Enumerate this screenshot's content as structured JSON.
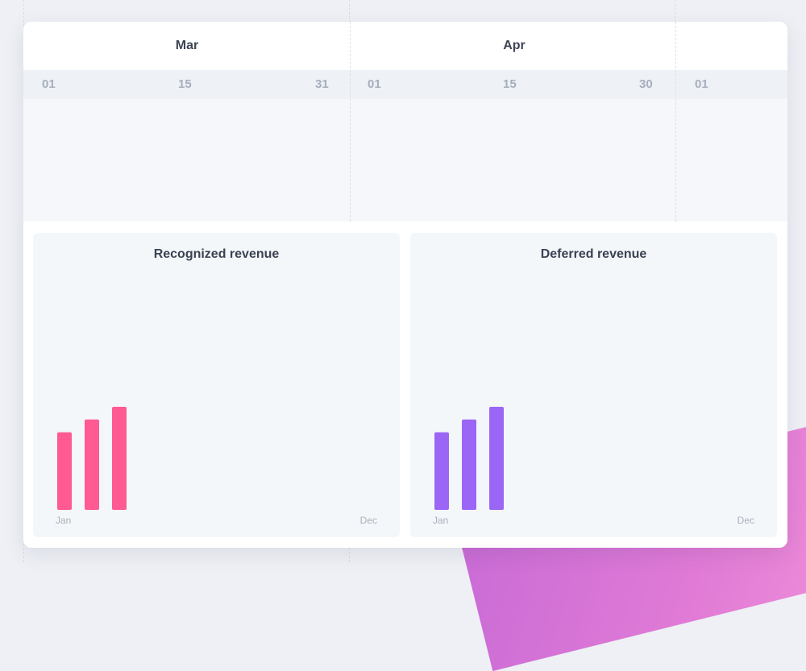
{
  "timeline": {
    "months": [
      "Mar",
      "Apr"
    ],
    "days": [
      "01",
      "15",
      "31",
      "01",
      "15",
      "30",
      "01"
    ]
  },
  "colors": {
    "recognized": "#ff5a91",
    "deferred": "#9b66f5"
  },
  "charts": {
    "recognized": {
      "title": "Recognized revenue",
      "start_label": "Jan",
      "end_label": "Dec"
    },
    "deferred": {
      "title": "Deferred revenue",
      "start_label": "Jan",
      "end_label": "Dec"
    }
  },
  "chart_data": [
    {
      "type": "bar",
      "title": "Recognized revenue",
      "x_range": [
        "Jan",
        "Dec"
      ],
      "values": [
        0.73,
        0.85,
        0.97
      ],
      "ylim": [
        0,
        1
      ],
      "grid": false,
      "legend": "none"
    },
    {
      "type": "bar",
      "title": "Deferred revenue",
      "x_range": [
        "Jan",
        "Dec"
      ],
      "values": [
        0.73,
        0.85,
        0.97
      ],
      "ylim": [
        0,
        1
      ],
      "grid": false,
      "legend": "none"
    }
  ]
}
